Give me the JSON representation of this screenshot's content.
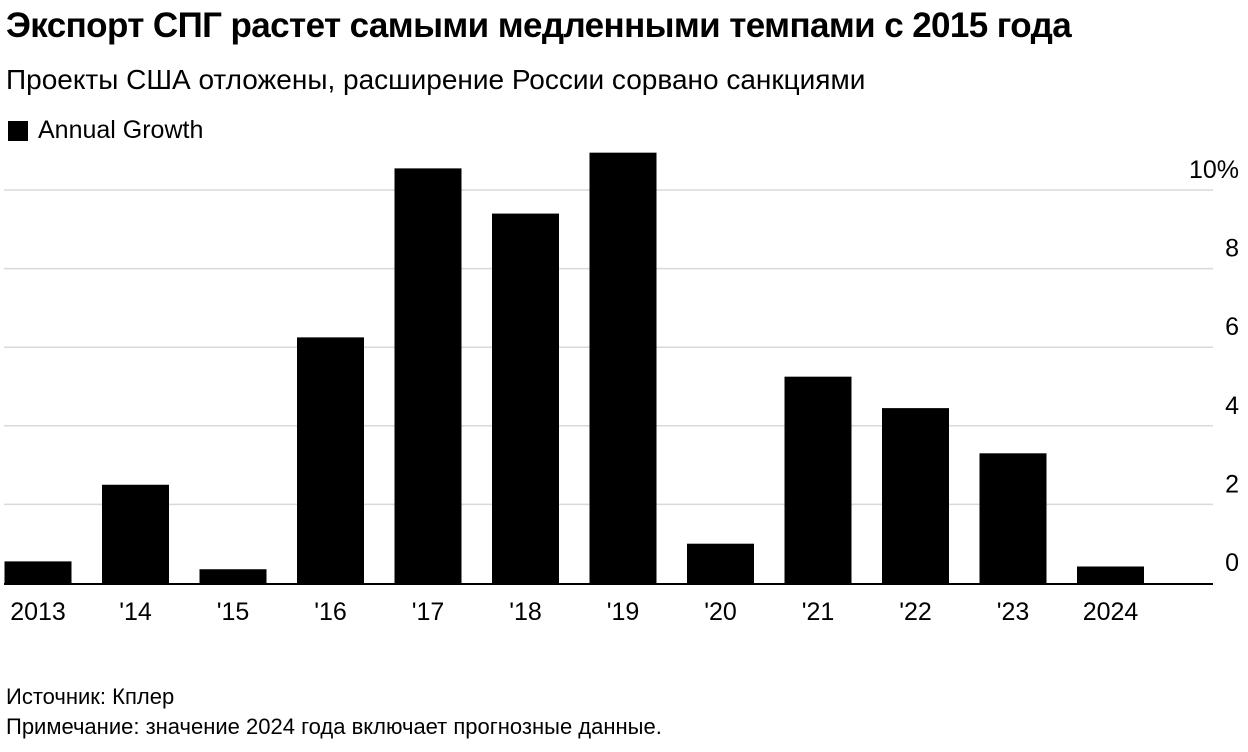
{
  "chart_data": {
    "type": "bar",
    "title": "Экспорт СПГ растет самыми медленными темпами с 2015 года",
    "subtitle": "Проекты США отложены, расширение России сорвано санкциями",
    "legend": {
      "position": "top-left",
      "entries": [
        {
          "name": "Annual Growth",
          "color": "#000000"
        }
      ]
    },
    "categories": [
      "2013",
      "'14",
      "'15",
      "'16",
      "'17",
      "'18",
      "'19",
      "'20",
      "'21",
      "'22",
      "'23",
      "2024"
    ],
    "series": [
      {
        "name": "Annual Growth",
        "values": [
          0.55,
          2.5,
          0.35,
          6.25,
          10.55,
          9.4,
          10.95,
          1.0,
          5.25,
          4.45,
          3.3,
          0.42
        ]
      }
    ],
    "y_axis": {
      "position": "right",
      "ylim": [
        0,
        11
      ],
      "ticks": [
        0,
        2,
        4,
        6,
        8,
        10
      ],
      "tick_labels": [
        "0",
        "2",
        "4",
        "6",
        "8",
        "10%"
      ]
    },
    "grid": true,
    "bar_color": "#000000",
    "grid_color": "#d9d9d9"
  },
  "footer": {
    "source": "Источник: Кплер",
    "note": "Примечание: значение 2024 года включает прогнозные данные."
  }
}
